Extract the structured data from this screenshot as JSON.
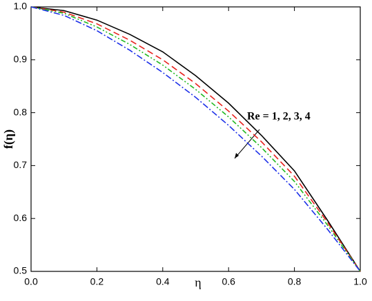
{
  "chart_data": {
    "type": "line",
    "xlabel": "η",
    "ylabel": "f(η)",
    "annotation": "Re = 1, 2, 3, 4",
    "x": [
      0,
      0.1,
      0.2,
      0.3,
      0.4,
      0.5,
      0.6,
      0.7,
      0.8,
      0.9,
      1
    ],
    "series": [
      {
        "color": "#000000",
        "dash": "",
        "values": [
          1,
          0.993,
          0.975,
          0.948,
          0.915,
          0.87,
          0.818,
          0.757,
          0.69,
          0.597,
          0.5
        ]
      },
      {
        "color": "#e8211c",
        "dash": "9 5",
        "values": [
          1,
          0.99,
          0.968,
          0.937,
          0.9,
          0.855,
          0.803,
          0.745,
          0.68,
          0.593,
          0.5
        ]
      },
      {
        "color": "#1fb81f",
        "dash": "7 3 2 3 2 3",
        "values": [
          1,
          0.988,
          0.962,
          0.929,
          0.89,
          0.844,
          0.792,
          0.734,
          0.67,
          0.588,
          0.5
        ]
      },
      {
        "color": "#1c2fe8",
        "dash": "9 3 2 3",
        "values": [
          1,
          0.984,
          0.955,
          0.918,
          0.876,
          0.829,
          0.776,
          0.718,
          0.655,
          0.58,
          0.5
        ]
      }
    ],
    "xlim": [
      0,
      1
    ],
    "ylim": [
      0.5,
      1
    ],
    "xticks": [
      {
        "value": 0,
        "label": "0.0"
      },
      0.2,
      0.4,
      0.6,
      0.8,
      {
        "value": 1,
        "label": "1.0"
      }
    ],
    "yticks": [
      0.5,
      0.6,
      0.7,
      0.8,
      0.9,
      {
        "value": 1,
        "label": "1.0"
      }
    ],
    "grid": false
  }
}
